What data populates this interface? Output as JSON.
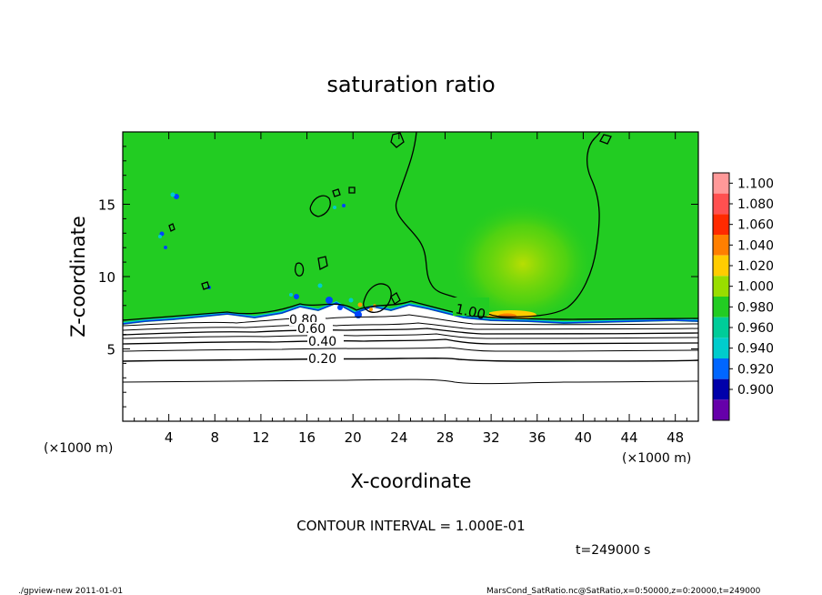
{
  "chart_data": {
    "type": "heatmap",
    "title": "saturation ratio",
    "xlabel": "X-coordinate",
    "ylabel": "Z-coordinate",
    "x_unit": "(×1000 m)",
    "y_unit": "(×1000 m)",
    "xlim": [
      0,
      50
    ],
    "ylim": [
      0,
      20
    ],
    "x_ticks": [
      4,
      8,
      12,
      16,
      20,
      24,
      28,
      32,
      36,
      40,
      44,
      48
    ],
    "y_ticks": [
      5,
      10,
      15
    ],
    "colorbar": {
      "levels": [
        "1.100",
        "1.080",
        "1.060",
        "1.040",
        "1.020",
        "1.000",
        "0.980",
        "0.960",
        "0.940",
        "0.920",
        "0.900"
      ],
      "colors": [
        "#ff9999",
        "#ff5050",
        "#ff2a00",
        "#ff7f00",
        "#ffcc00",
        "#99dd00",
        "#22cc22",
        "#00cc99",
        "#00cccc",
        "#0066ff",
        "#0000aa",
        "#6600aa"
      ]
    },
    "contour_labels": [
      {
        "text": "1.00",
        "x": 28.5,
        "z": 7.8
      },
      {
        "text": "0.80",
        "x": 16.8,
        "z": 6.8
      },
      {
        "text": "0.60",
        "x": 17.0,
        "z": 6.2
      },
      {
        "text": "0.40",
        "x": 17.8,
        "z": 5.3
      },
      {
        "text": "0.20",
        "x": 17.5,
        "z": 4.2
      }
    ],
    "contour_interval": "CONTOUR INTERVAL = 1.000E-01",
    "time_label": "t=249000 s"
  },
  "footer": {
    "left": "./gpview-new  2011-01-01",
    "right": "MarsCond_SatRatio.nc@SatRatio,x=0:50000,z=0:20000,t=249000"
  }
}
